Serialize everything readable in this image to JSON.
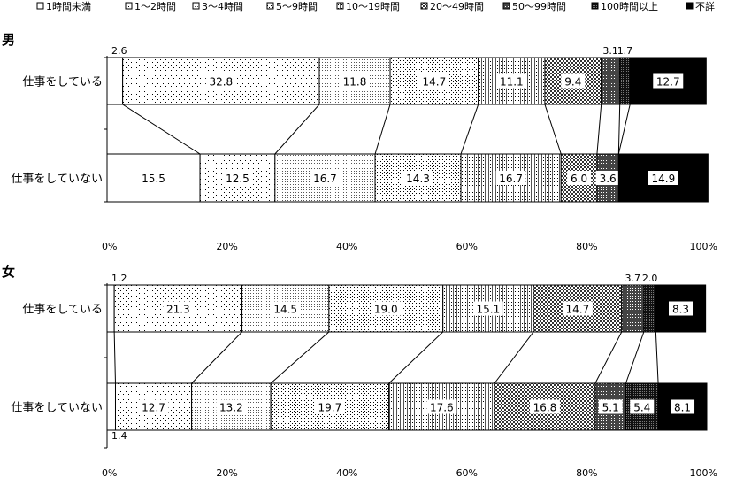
{
  "chart_data": {
    "type": "bar",
    "stacked": true,
    "orientation": "horizontal",
    "percent_axis": true,
    "xlim": [
      0,
      100
    ],
    "tick_labels": [
      "0%",
      "20%",
      "40%",
      "60%",
      "80%",
      "100%"
    ],
    "legend": {
      "position": "top",
      "entries": [
        {
          "label": "1時間未満",
          "pattern": "blank"
        },
        {
          "label": "1～2時間",
          "pattern": "dots-sparse"
        },
        {
          "label": "3～4時間",
          "pattern": "dots-fine"
        },
        {
          "label": "5～9時間",
          "pattern": "dots-medium"
        },
        {
          "label": "10～19時間",
          "pattern": "vlines"
        },
        {
          "label": "20～49時間",
          "pattern": "checker"
        },
        {
          "label": "50～99時間",
          "pattern": "dense"
        },
        {
          "label": "100時間以上",
          "pattern": "denser"
        },
        {
          "label": "不詳",
          "pattern": "solid"
        }
      ]
    },
    "panels": [
      {
        "title": "男",
        "categories": [
          "仕事をしている",
          "仕事をしていない"
        ],
        "rows": [
          {
            "label": "仕事をしている",
            "values": [
              2.6,
              32.8,
              11.8,
              14.7,
              11.1,
              9.4,
              3.1,
              1.7,
              12.7
            ]
          },
          {
            "label": "仕事をしていない",
            "values": [
              15.5,
              12.5,
              16.7,
              14.3,
              16.7,
              6.0,
              3.6,
              0.0,
              14.9
            ]
          }
        ]
      },
      {
        "title": "女",
        "categories": [
          "仕事をしている",
          "仕事をしていない"
        ],
        "rows": [
          {
            "label": "仕事をしている",
            "values": [
              1.2,
              21.3,
              14.5,
              19.0,
              15.1,
              14.7,
              3.7,
              2.0,
              8.3
            ]
          },
          {
            "label": "仕事をしていない",
            "values": [
              1.4,
              12.7,
              13.2,
              19.7,
              17.6,
              16.8,
              5.1,
              5.4,
              8.1
            ]
          }
        ]
      }
    ]
  }
}
